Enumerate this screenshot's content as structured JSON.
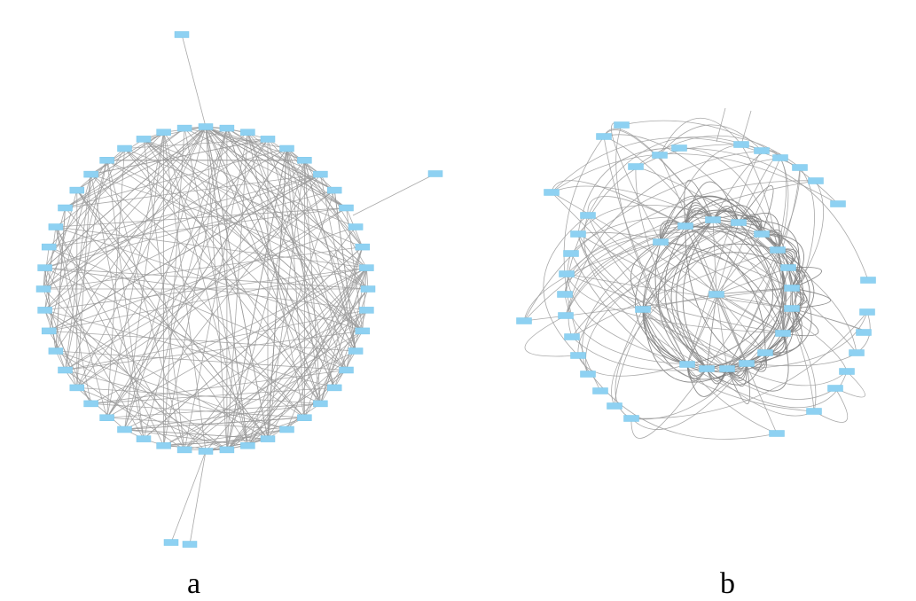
{
  "panels": [
    {
      "id": "a",
      "label": "a"
    },
    {
      "id": "b",
      "label": "b"
    }
  ],
  "colors": {
    "node": "#8ed1f2",
    "edge": "#9a9a9a",
    "background": "#ffffff"
  }
}
